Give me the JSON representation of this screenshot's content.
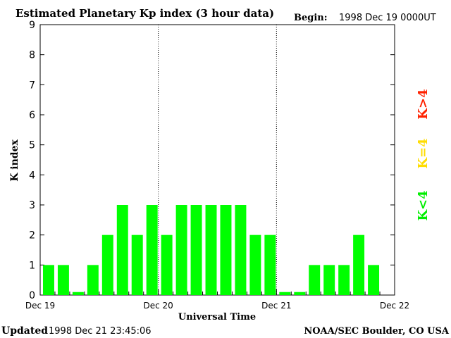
{
  "chart_data": {
    "type": "bar",
    "title": "Estimated Planetary Kp index (3 hour data)",
    "begin_label": "Begin:",
    "begin_value": "1998 Dec 19 0000UT",
    "ylabel": "K index",
    "xlabel": "Universal Time",
    "ylim": [
      0,
      9
    ],
    "yticks": [
      "0",
      "1",
      "2",
      "3",
      "4",
      "5",
      "6",
      "7",
      "8",
      "9"
    ],
    "xtick_labels": [
      "Dec 19",
      "Dec 20",
      "Dec 21",
      "Dec 22"
    ],
    "day_separators": [
      1,
      2
    ],
    "values": [
      1,
      1,
      0.1,
      1,
      2,
      3,
      2,
      3,
      2,
      3,
      3,
      3,
      3,
      3,
      2,
      2,
      0.1,
      0.1,
      1,
      1,
      1,
      2,
      1
    ],
    "bar_color": "#00ff00",
    "legend": [
      {
        "label": "K>4",
        "color": "#ff2200"
      },
      {
        "label": "K=4",
        "color": "#ffdd00"
      },
      {
        "label": "K<4",
        "color": "#00ee00"
      }
    ]
  },
  "footer": {
    "updated_label": "Updated",
    "updated_value": "1998 Dec 21 23:45:06",
    "credit": "NOAA/SEC Boulder, CO USA"
  }
}
